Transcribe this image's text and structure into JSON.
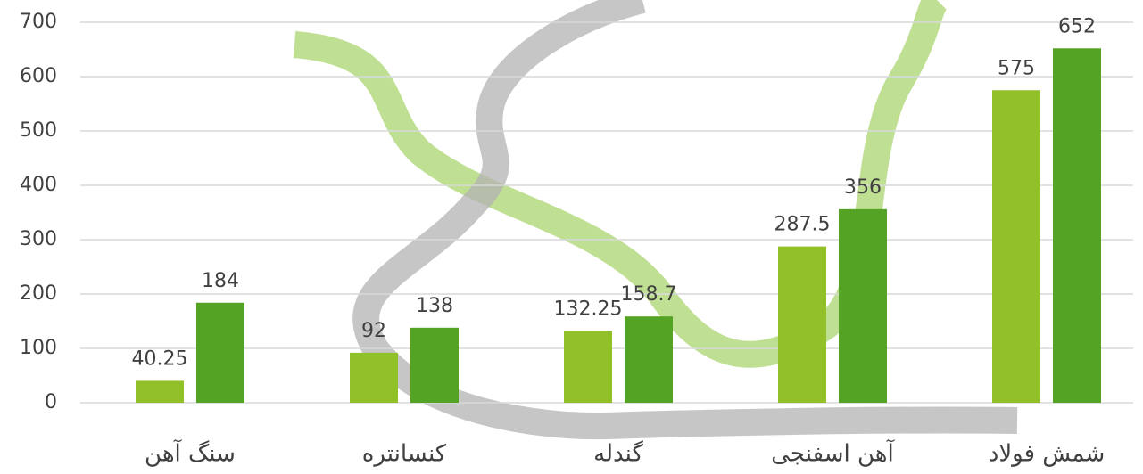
{
  "chart_data": {
    "type": "bar",
    "categories": [
      "سنگ آهن",
      "کنسانتره",
      "گندله",
      "آهن اسفنجی",
      "شمش فولاد"
    ],
    "series": [
      {
        "color": "#92c028",
        "values": [
          40.25,
          92,
          132.25,
          287.5,
          575
        ]
      },
      {
        "color": "#55a324",
        "values": [
          184,
          138,
          158.7,
          356,
          652
        ]
      }
    ],
    "ylim": [
      0,
      700
    ],
    "yticks": [
      0,
      100,
      200,
      300,
      400,
      500,
      600,
      700
    ],
    "grid": true
  }
}
